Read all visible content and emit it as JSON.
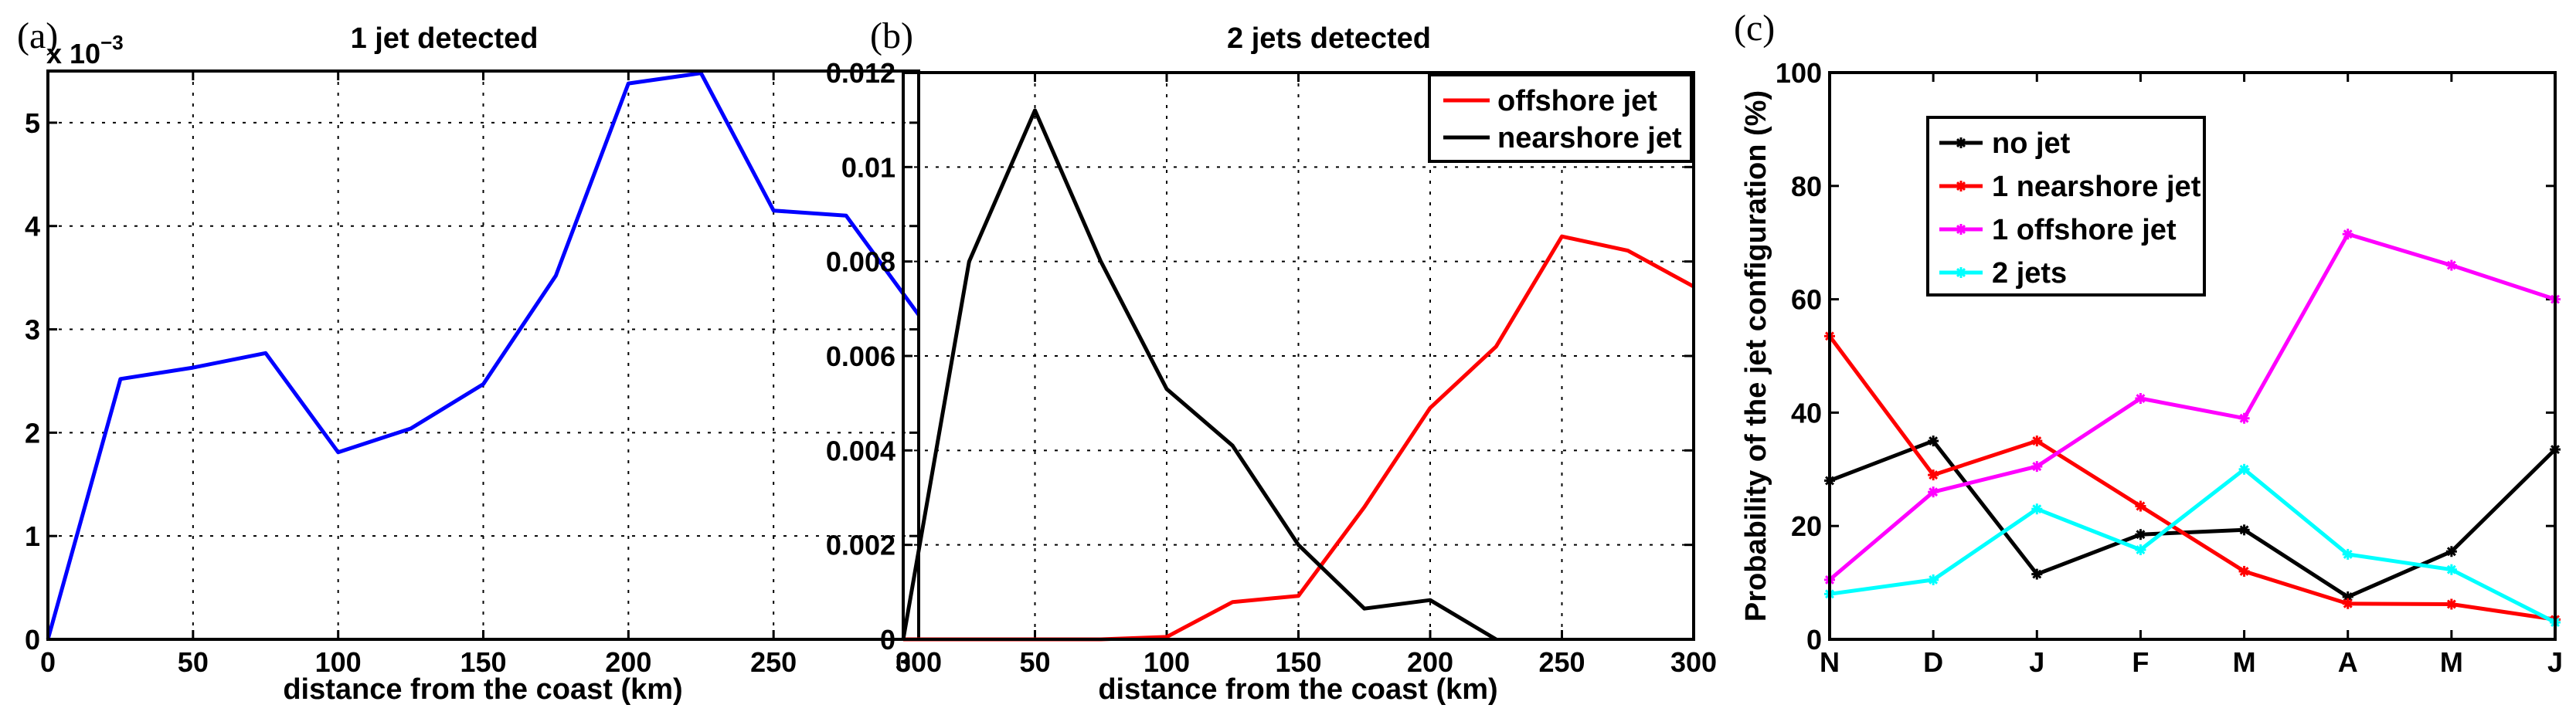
{
  "chart_data": [
    {
      "panel": "(a)",
      "type": "line",
      "title": "1 jet detected",
      "xlabel": "distance from the coast (km)",
      "ylabel": "",
      "exponent_label": "x 10",
      "exponent_power": "−3",
      "xlim": [
        0,
        300
      ],
      "ylim": [
        0,
        5.5
      ],
      "xticks": [
        0,
        50,
        100,
        150,
        200,
        250,
        300
      ],
      "yticks": [
        0,
        1,
        2,
        3,
        4,
        5
      ],
      "xtick_labels": [
        "0",
        "50",
        "100",
        "150",
        "200",
        "250",
        "300"
      ],
      "ytick_labels": [
        "0",
        "1",
        "2",
        "3",
        "4",
        "5"
      ],
      "grid": true,
      "series": [
        {
          "name": "1 jet",
          "color": "#0000ff",
          "x": [
            0,
            25,
            50,
            75,
            100,
            125,
            150,
            175,
            200,
            225,
            250,
            275,
            300
          ],
          "y": [
            0,
            2.52,
            2.63,
            2.77,
            1.81,
            2.04,
            2.47,
            3.52,
            5.38,
            5.48,
            4.15,
            4.1,
            3.14
          ]
        }
      ]
    },
    {
      "panel": "(b)",
      "type": "line",
      "title": "2 jets detected",
      "xlabel": "distance from the coast (km)",
      "ylabel": "",
      "xlim": [
        0,
        300
      ],
      "ylim": [
        0,
        0.012
      ],
      "xticks": [
        0,
        50,
        100,
        150,
        200,
        250,
        300
      ],
      "yticks": [
        0,
        0.002,
        0.004,
        0.006,
        0.008,
        0.01,
        0.012
      ],
      "xtick_labels": [
        "0",
        "50",
        "100",
        "150",
        "200",
        "250",
        "300"
      ],
      "ytick_labels": [
        "0",
        "0.002",
        "0.004",
        "0.006",
        "0.008",
        "0.01",
        "0.012"
      ],
      "grid": true,
      "legend_position": "top-right",
      "series": [
        {
          "name": "offshore jet",
          "color": "#ff0000",
          "x": [
            0,
            25,
            50,
            75,
            100,
            125,
            150,
            175,
            200,
            225,
            250,
            275,
            300
          ],
          "y": [
            0,
            0,
            0,
            0,
            5e-05,
            0.00079,
            0.00092,
            0.0028,
            0.0049,
            0.0062,
            0.00853,
            0.00823,
            0.00747
          ]
        },
        {
          "name": "nearshore jet",
          "color": "#000000",
          "x": [
            0,
            25,
            50,
            75,
            100,
            125,
            150,
            175,
            200,
            225
          ],
          "y": [
            0,
            0.008,
            0.0112,
            0.008,
            0.0053,
            0.0041,
            0.002,
            0.00065,
            0.00083,
            0
          ]
        }
      ]
    },
    {
      "panel": "(c)",
      "type": "line",
      "title": "",
      "xlabel": "",
      "ylabel": "Probability of the jet configuration (%)",
      "categories": [
        "N",
        "D",
        "J",
        "F",
        "M",
        "A",
        "M",
        "J"
      ],
      "ylim": [
        0,
        100
      ],
      "yticks": [
        0,
        20,
        40,
        60,
        80,
        100
      ],
      "ytick_labels": [
        "0",
        "20",
        "40",
        "60",
        "80",
        "100"
      ],
      "grid": false,
      "legend_position": "top-left",
      "series": [
        {
          "name": "no jet",
          "color": "#000000",
          "values": [
            28,
            35,
            11.5,
            18.5,
            19.3,
            7.5,
            15.5,
            33.5
          ]
        },
        {
          "name": "1 nearshore jet",
          "color": "#ff0000",
          "values": [
            53.5,
            29,
            35,
            23.5,
            12,
            6.3,
            6.2,
            3.5
          ]
        },
        {
          "name": "1 offshore jet",
          "color": "#ff00ff",
          "values": [
            10.5,
            26,
            30.5,
            42.5,
            39,
            71.5,
            66,
            60
          ]
        },
        {
          "name": "2 jets",
          "color": "#00ffff",
          "values": [
            8,
            10.5,
            23,
            15.8,
            30,
            15,
            12.3,
            3
          ]
        }
      ]
    }
  ]
}
